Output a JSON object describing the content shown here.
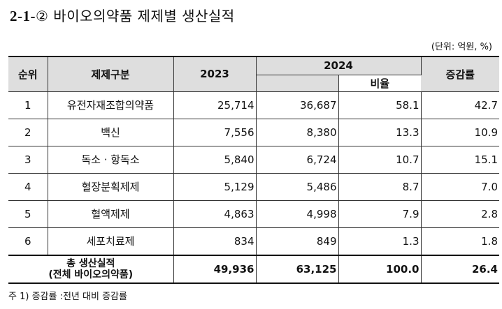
{
  "title": {
    "number": "2-1-",
    "circled": "②",
    "text": " 바이오의약품 제제별 생산실적"
  },
  "unit_note": "(단위: 억원, %)",
  "table": {
    "headers": {
      "rank": "순위",
      "category": "제제구분",
      "year_2023": "2023",
      "year_2024": "2024",
      "ratio": "비율",
      "growth": "증감률"
    },
    "rows": [
      {
        "rank": "1",
        "name": "유전자재조합의약품",
        "v2023": "25,714",
        "v2024": "36,687",
        "ratio": "58.1",
        "growth": "42.7"
      },
      {
        "rank": "2",
        "name": "백신",
        "v2023": "7,556",
        "v2024": "8,380",
        "ratio": "13.3",
        "growth": "10.9"
      },
      {
        "rank": "3",
        "name": "독소 · 항독소",
        "v2023": "5,840",
        "v2024": "6,724",
        "ratio": "10.7",
        "growth": "15.1"
      },
      {
        "rank": "4",
        "name": "혈장분획제제",
        "v2023": "5,129",
        "v2024": "5,486",
        "ratio": "8.7",
        "growth": "7.0"
      },
      {
        "rank": "5",
        "name": "혈액제제",
        "v2023": "4,863",
        "v2024": "4,998",
        "ratio": "7.9",
        "growth": "2.8"
      },
      {
        "rank": "6",
        "name": "세포치료제",
        "v2023": "834",
        "v2024": "849",
        "ratio": "1.3",
        "growth": "1.8"
      }
    ],
    "total": {
      "label_line1": "총 생산실적",
      "label_line2": "(전체 바이오의약품)",
      "v2023": "49,936",
      "v2024": "63,125",
      "ratio": "100.0",
      "growth": "26.4"
    }
  },
  "footnote": "주 1) 증감률 :전년 대비 증감률"
}
